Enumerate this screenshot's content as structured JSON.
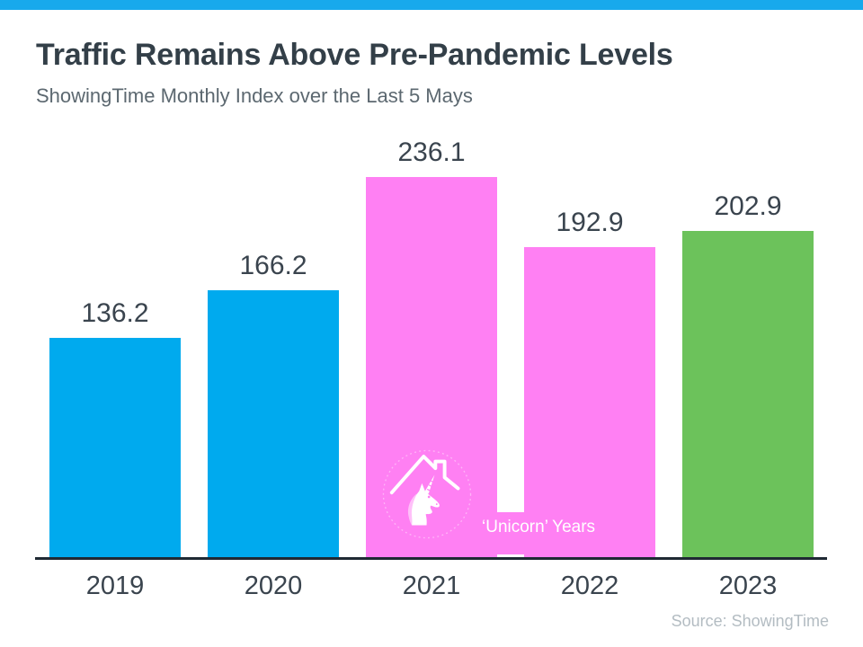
{
  "header": {
    "title": "Traffic Remains Above Pre-Pandemic Levels",
    "subtitle": "ShowingTime Monthly Index over the Last 5 Mays"
  },
  "chart_data": {
    "type": "bar",
    "categories": [
      "2019",
      "2020",
      "2021",
      "2022",
      "2023"
    ],
    "values": [
      136.2,
      166.2,
      236.1,
      192.9,
      202.9
    ],
    "value_labels": [
      "136.2",
      "166.2",
      "236.1",
      "192.9",
      "202.9"
    ],
    "bar_colors": [
      "#00AAEE",
      "#00AAEE",
      "#FF80F3",
      "#FF80F3",
      "#6CC25B"
    ],
    "title": "Traffic Remains Above Pre-Pandemic Levels",
    "subtitle": "ShowingTime Monthly Index over the Last 5 Mays",
    "xlabel": "",
    "ylabel": "",
    "ylim": [
      0,
      260
    ],
    "grid": false,
    "legend": "none",
    "annotation": {
      "label": "‘Unicorn’ Years",
      "applies_to": [
        "2021",
        "2022"
      ],
      "icon": "unicorn-house-icon",
      "text_color": "#FFFFFF"
    }
  },
  "footer": {
    "source": "Source: ShowingTime"
  },
  "colors": {
    "accent_bar": "#18A9EC",
    "blue": "#00AAEE",
    "pink": "#FF80F3",
    "green": "#6CC25B",
    "axis": "#1F2933",
    "title_text": "#333F48",
    "subtitle_text": "#5C6870",
    "label_text": "#3A444E",
    "source_text": "#B3BCC2"
  }
}
